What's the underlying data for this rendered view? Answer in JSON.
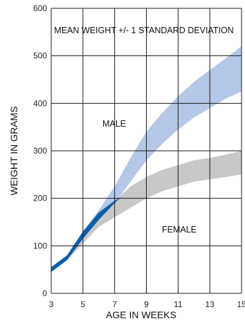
{
  "chart_data": {
    "type": "area",
    "title": "MEAN WEIGHT +/- 1 STANDARD DEVIATION",
    "xlabel": "AGE IN WEEKS",
    "ylabel": "WEIGHT IN GRAMS",
    "xlim": [
      3,
      15
    ],
    "ylim": [
      0,
      600
    ],
    "x_ticks": [
      "3",
      "5",
      "7",
      "9",
      "11",
      "13",
      "15"
    ],
    "y_ticks": [
      "0",
      "100",
      "200",
      "300",
      "400",
      "500",
      "600"
    ],
    "grid": true,
    "annotations": [
      "MALE",
      "FEMALE"
    ],
    "series": [
      {
        "name": "MALE",
        "color": "#b4c7e7",
        "x": [
          3,
          4,
          5,
          6,
          7,
          8,
          9,
          10,
          11,
          12,
          13,
          14,
          15
        ],
        "upper": [
          55,
          80,
          130,
          175,
          225,
          285,
          340,
          380,
          415,
          445,
          470,
          495,
          520
        ],
        "lower": [
          45,
          70,
          115,
          155,
          190,
          235,
          280,
          315,
          345,
          370,
          390,
          410,
          425
        ]
      },
      {
        "name": "FEMALE",
        "color": "#c8c8c8",
        "x": [
          3,
          4,
          5,
          6,
          7,
          8,
          9,
          10,
          11,
          12,
          13,
          14,
          15
        ],
        "upper": [
          55,
          80,
          130,
          170,
          195,
          225,
          245,
          260,
          270,
          280,
          285,
          292,
          300
        ],
        "lower": [
          45,
          70,
          105,
          140,
          160,
          180,
          200,
          215,
          225,
          235,
          240,
          245,
          250
        ]
      }
    ],
    "overlap_color": "#0b5ea8"
  }
}
